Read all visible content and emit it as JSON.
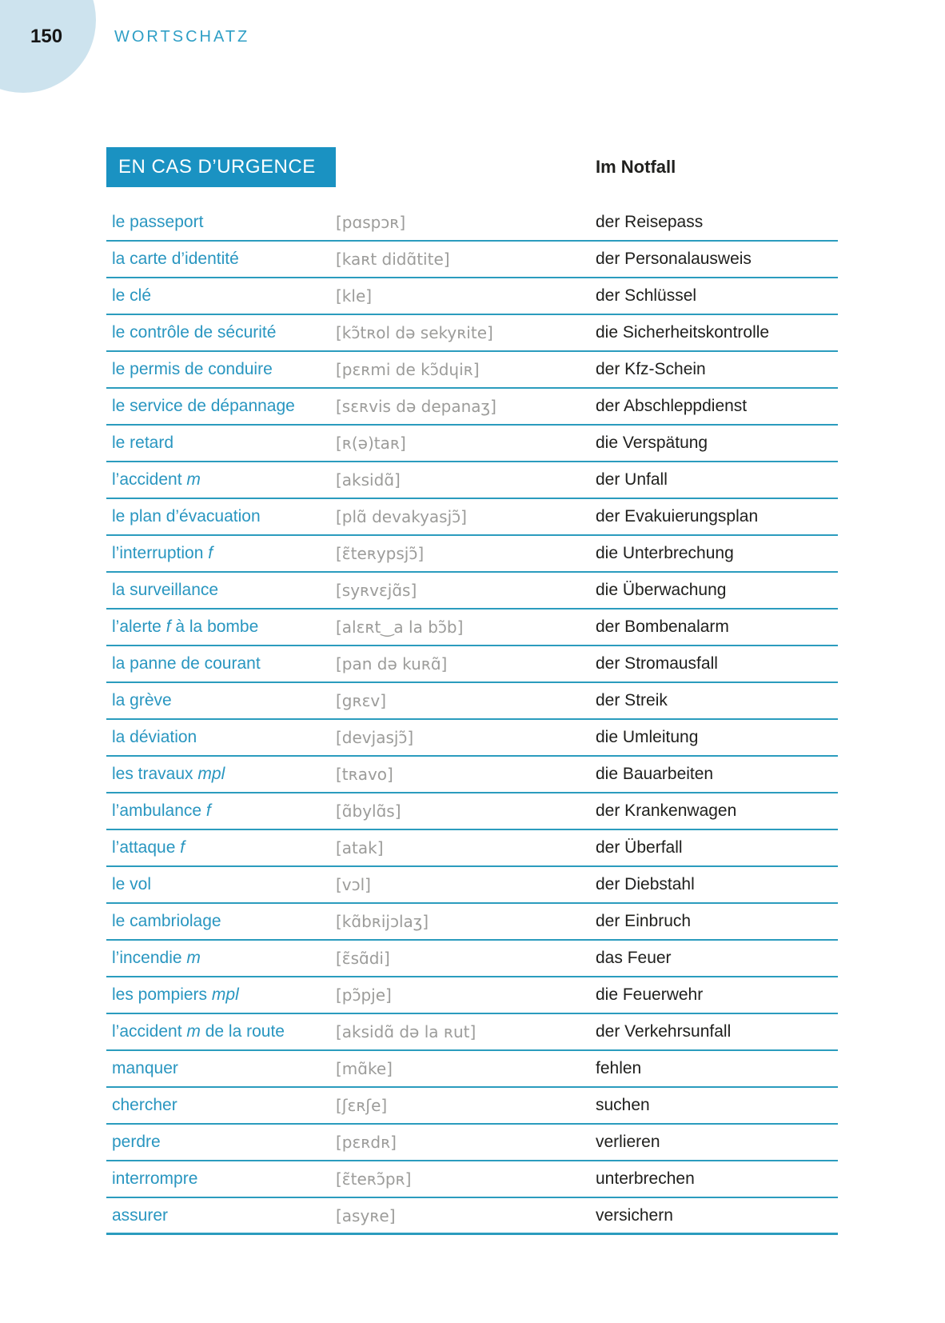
{
  "page": {
    "number": "150",
    "section_title": "WORTSCHATZ"
  },
  "section": {
    "title_fr": "EN CAS D’URGENCE",
    "title_de": "Im Notfall"
  },
  "colors": {
    "teal_box": "#1a92c2",
    "french_text": "#2996c0",
    "rule_line": "#2b9cbe",
    "ipa_gray": "#9c9c9a",
    "german_text": "#20201e",
    "circle_blue": "#cde3ee",
    "section_title_teal": "#2f9fc6"
  },
  "vocab": {
    "rows": [
      {
        "fr": [
          {
            "text": "le passeport",
            "italic": false
          }
        ],
        "ipa": "[pɑspɔʀ]",
        "de": "der Reisepass"
      },
      {
        "fr": [
          {
            "text": "la carte d’identité",
            "italic": false
          }
        ],
        "ipa": "[kaʀt didɑ̃tite]",
        "de": "der Personalausweis"
      },
      {
        "fr": [
          {
            "text": "le clé",
            "italic": false
          }
        ],
        "ipa": "[kle]",
        "de": "der Schlüssel"
      },
      {
        "fr": [
          {
            "text": "le contrôle de sécurité",
            "italic": false
          }
        ],
        "ipa": "[kɔ̃tʀol də sekyʀite]",
        "de": "die Sicherheitskontrolle"
      },
      {
        "fr": [
          {
            "text": "le permis de conduire",
            "italic": false
          }
        ],
        "ipa": "[pɛʀmi de kɔ̃dɥiʀ]",
        "de": "der Kfz-Schein"
      },
      {
        "fr": [
          {
            "text": "le service de dépannage",
            "italic": false
          }
        ],
        "ipa": "[sɛʀvis də depanaʒ]",
        "de": "der Abschleppdienst"
      },
      {
        "fr": [
          {
            "text": "le retard",
            "italic": false
          }
        ],
        "ipa": "[ʀ(ə)taʀ]",
        "de": "die Verspätung"
      },
      {
        "fr": [
          {
            "text": "l’accident ",
            "italic": false
          },
          {
            "text": "m",
            "italic": true
          }
        ],
        "ipa": "[aksidɑ̃]",
        "de": "der Unfall"
      },
      {
        "fr": [
          {
            "text": "le plan d’évacuation",
            "italic": false
          }
        ],
        "ipa": "[plɑ̃ devakyasjɔ̃]",
        "de": "der Evakuierungsplan"
      },
      {
        "fr": [
          {
            "text": "l’interruption ",
            "italic": false
          },
          {
            "text": "f",
            "italic": true
          }
        ],
        "ipa": "[ɛ̃teʀypsjɔ̃]",
        "de": "die Unterbrechung"
      },
      {
        "fr": [
          {
            "text": "la surveillance",
            "italic": false
          }
        ],
        "ipa": "[syʀvɛjɑ̃s]",
        "de": "die Überwachung"
      },
      {
        "fr": [
          {
            "text": "l’alerte ",
            "italic": false
          },
          {
            "text": "f",
            "italic": true
          },
          {
            "text": " à la bombe",
            "italic": false
          }
        ],
        "ipa": "[alɛʀt‿a la bɔ̃b]",
        "de": "der Bombenalarm"
      },
      {
        "fr": [
          {
            "text": "la panne de courant",
            "italic": false
          }
        ],
        "ipa": "[pan də kuʀɑ̃]",
        "de": "der Stromausfall"
      },
      {
        "fr": [
          {
            "text": "la grève",
            "italic": false
          }
        ],
        "ipa": "[gʀɛv]",
        "de": "der Streik"
      },
      {
        "fr": [
          {
            "text": "la déviation",
            "italic": false
          }
        ],
        "ipa": "[devjasjɔ̃]",
        "de": "die Umleitung"
      },
      {
        "fr": [
          {
            "text": "les travaux ",
            "italic": false
          },
          {
            "text": "mpl",
            "italic": true
          }
        ],
        "ipa": "[tʀavo]",
        "de": "die Bauarbeiten"
      },
      {
        "fr": [
          {
            "text": "l’ambulance ",
            "italic": false
          },
          {
            "text": "f",
            "italic": true
          }
        ],
        "ipa": "[ɑ̃bylɑ̃s]",
        "de": "der Krankenwagen"
      },
      {
        "fr": [
          {
            "text": "l’attaque ",
            "italic": false
          },
          {
            "text": "f",
            "italic": true
          }
        ],
        "ipa": "[atak]",
        "de": "der Überfall"
      },
      {
        "fr": [
          {
            "text": "le vol",
            "italic": false
          }
        ],
        "ipa": "[vɔl]",
        "de": "der Diebstahl"
      },
      {
        "fr": [
          {
            "text": "le cambriolage",
            "italic": false
          }
        ],
        "ipa": "[kɑ̃bʀijɔlaʒ]",
        "de": "der Einbruch"
      },
      {
        "fr": [
          {
            "text": "l’incendie ",
            "italic": false
          },
          {
            "text": "m",
            "italic": true
          }
        ],
        "ipa": "[ɛ̃sɑ̃di]",
        "de": "das Feuer"
      },
      {
        "fr": [
          {
            "text": "les pompiers ",
            "italic": false
          },
          {
            "text": "mpl",
            "italic": true
          }
        ],
        "ipa": "[pɔ̃pje]",
        "de": "die Feuerwehr"
      },
      {
        "fr": [
          {
            "text": "l’accident ",
            "italic": false
          },
          {
            "text": "m",
            "italic": true
          },
          {
            "text": " de la route",
            "italic": false
          }
        ],
        "ipa": "[aksidɑ̃ də la ʀut]",
        "de": "der Verkehrsunfall"
      },
      {
        "fr": [
          {
            "text": "manquer",
            "italic": false
          }
        ],
        "ipa": "[mɑ̃ke]",
        "de": "fehlen"
      },
      {
        "fr": [
          {
            "text": "chercher",
            "italic": false
          }
        ],
        "ipa": "[ʃɛʀʃe]",
        "de": "suchen"
      },
      {
        "fr": [
          {
            "text": "perdre",
            "italic": false
          }
        ],
        "ipa": "[pɛʀdʀ]",
        "de": "verlieren"
      },
      {
        "fr": [
          {
            "text": "interrompre",
            "italic": false
          }
        ],
        "ipa": "[ɛ̃teʀɔ̃pʀ]",
        "de": "unterbrechen"
      },
      {
        "fr": [
          {
            "text": "assurer",
            "italic": false
          }
        ],
        "ipa": "[asyʀe]",
        "de": "versichern"
      }
    ]
  }
}
